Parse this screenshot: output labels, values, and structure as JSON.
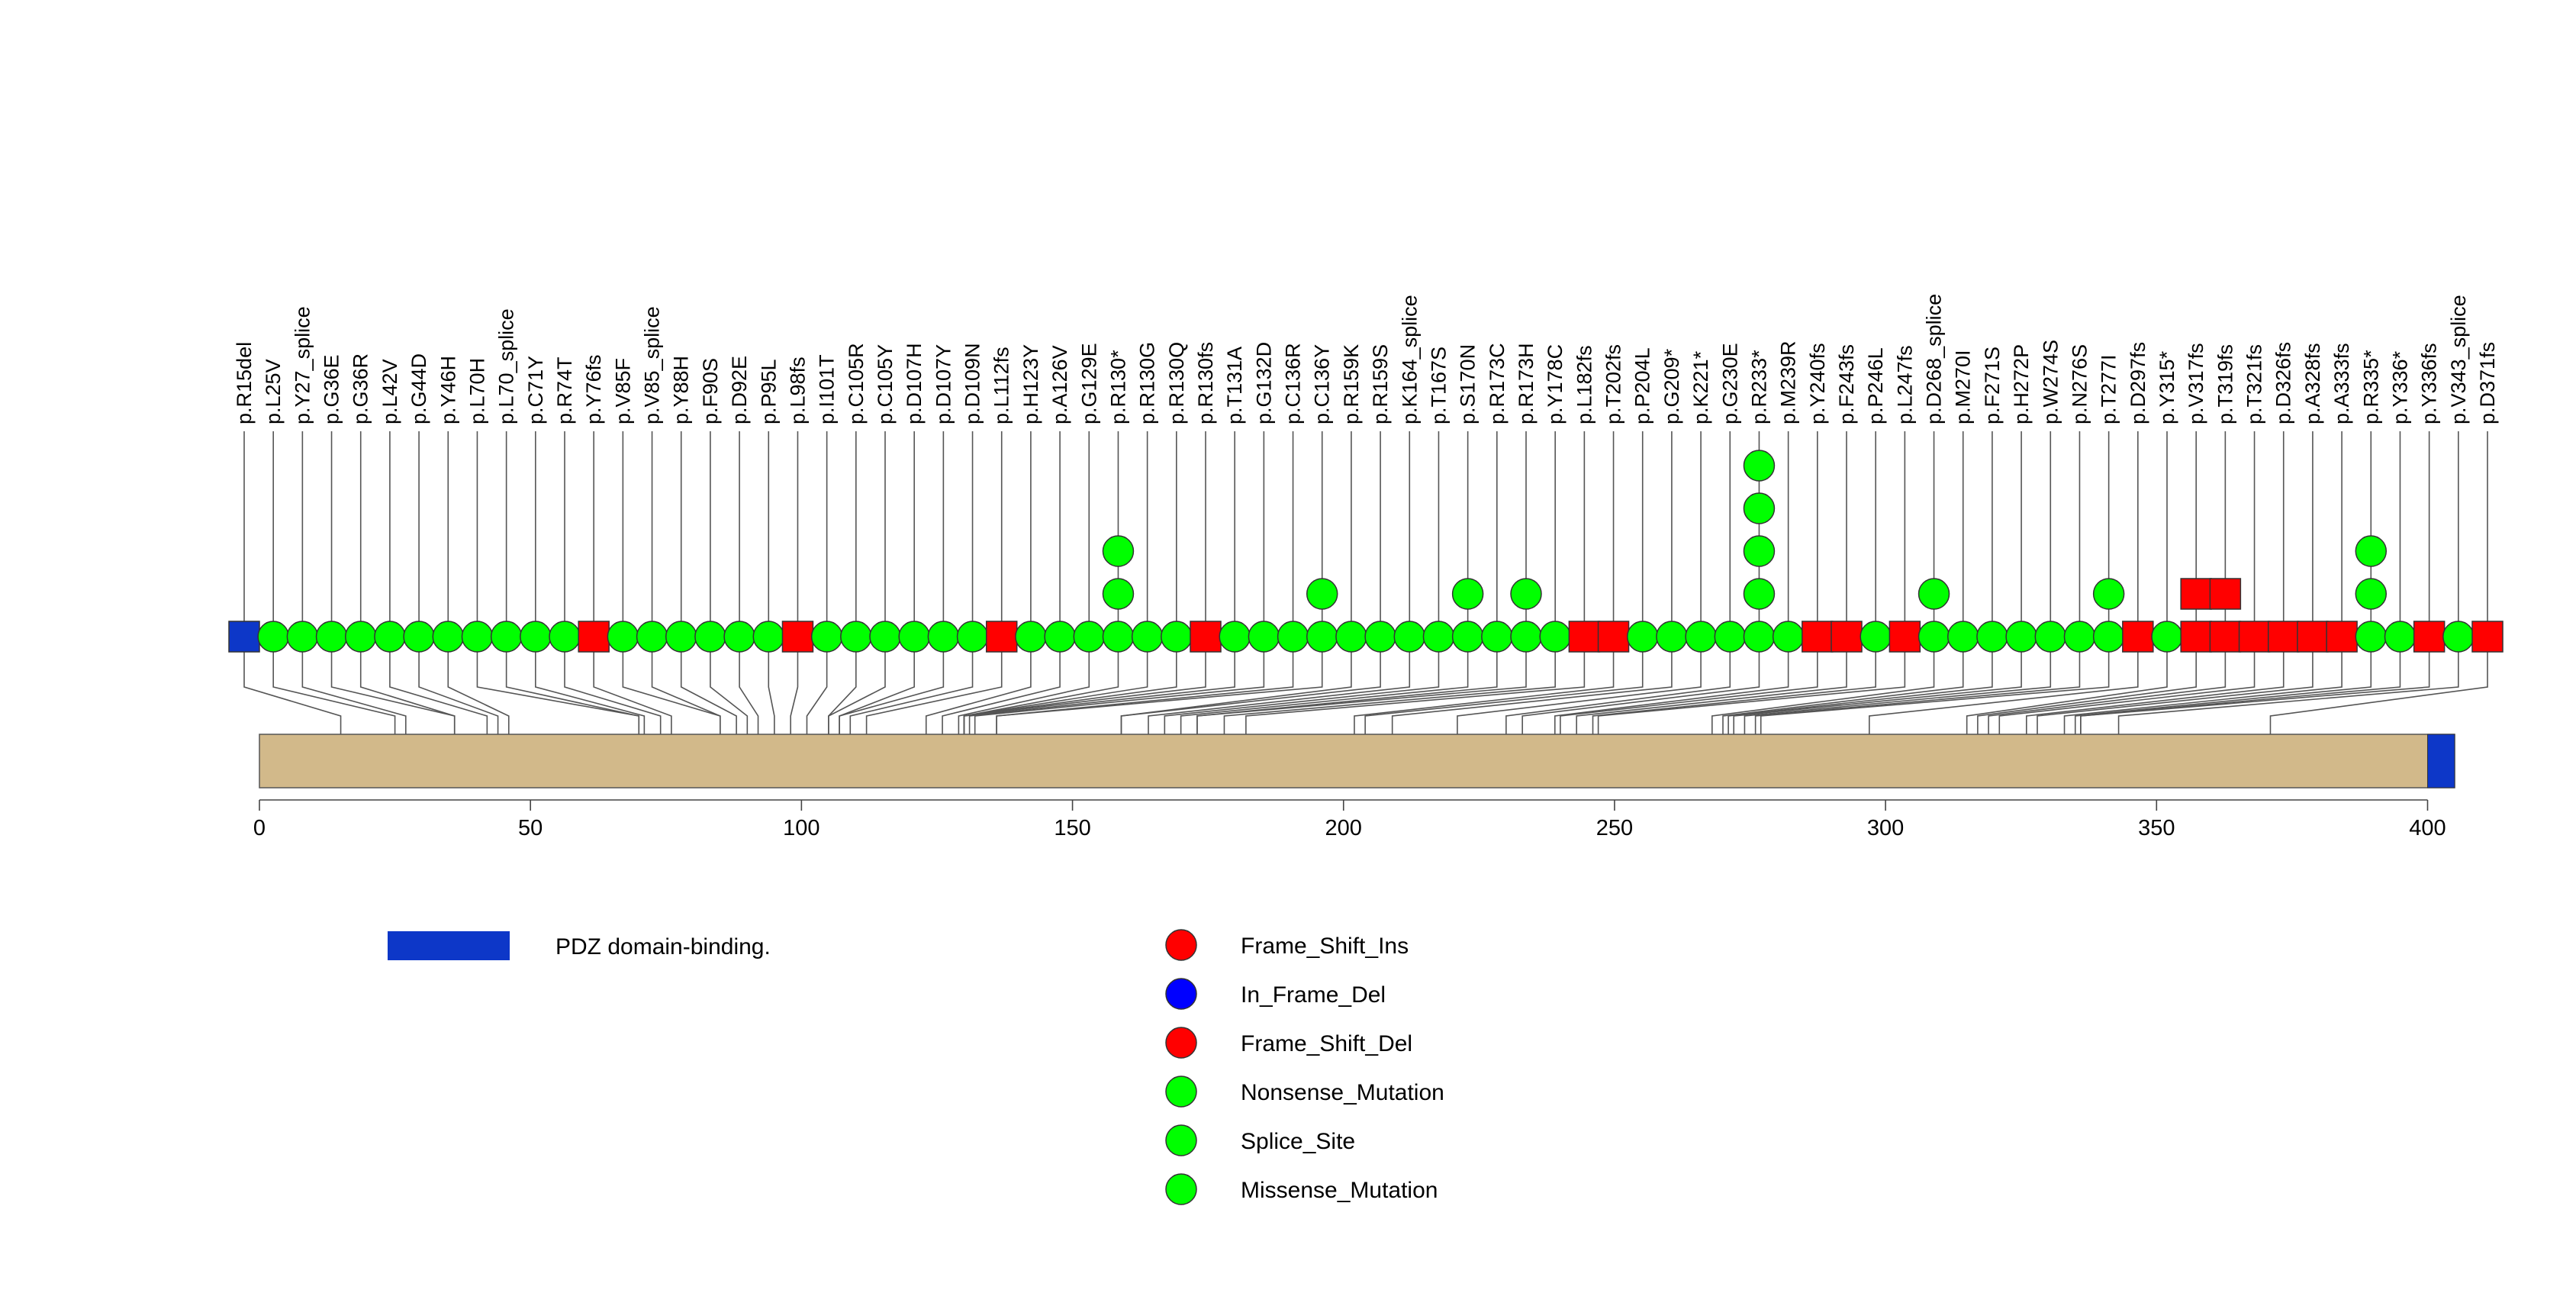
{
  "chart_data": {
    "type": "lollipop",
    "protein_length": 405,
    "axis": {
      "xlim": [
        0,
        405
      ],
      "ticks": [
        0,
        50,
        100,
        150,
        200,
        250,
        300,
        350,
        400
      ]
    },
    "domains": [
      {
        "name": "PDZ domain-binding.",
        "start": 400,
        "end": 405,
        "color": "#0d37c8"
      }
    ],
    "mutations": [
      {
        "label": "p.R15del",
        "pos": 15,
        "count": 1,
        "type": "In_Frame_Del"
      },
      {
        "label": "p.L25V",
        "pos": 25,
        "count": 1,
        "type": "Missense_Mutation"
      },
      {
        "label": "p.Y27_splice",
        "pos": 27,
        "count": 1,
        "type": "Splice_Site"
      },
      {
        "label": "p.G36E",
        "pos": 36,
        "count": 1,
        "type": "Missense_Mutation"
      },
      {
        "label": "p.G36R",
        "pos": 36,
        "count": 1,
        "type": "Missense_Mutation"
      },
      {
        "label": "p.L42V",
        "pos": 42,
        "count": 1,
        "type": "Missense_Mutation"
      },
      {
        "label": "p.G44D",
        "pos": 44,
        "count": 1,
        "type": "Missense_Mutation"
      },
      {
        "label": "p.Y46H",
        "pos": 46,
        "count": 1,
        "type": "Missense_Mutation"
      },
      {
        "label": "p.L70H",
        "pos": 70,
        "count": 1,
        "type": "Missense_Mutation"
      },
      {
        "label": "p.L70_splice",
        "pos": 70,
        "count": 1,
        "type": "Splice_Site"
      },
      {
        "label": "p.C71Y",
        "pos": 71,
        "count": 1,
        "type": "Missense_Mutation"
      },
      {
        "label": "p.R74T",
        "pos": 74,
        "count": 1,
        "type": "Missense_Mutation"
      },
      {
        "label": "p.Y76fs",
        "pos": 76,
        "count": 1,
        "type": "Frame_Shift_Del"
      },
      {
        "label": "p.V85F",
        "pos": 85,
        "count": 1,
        "type": "Missense_Mutation"
      },
      {
        "label": "p.V85_splice",
        "pos": 85,
        "count": 1,
        "type": "Splice_Site"
      },
      {
        "label": "p.Y88H",
        "pos": 88,
        "count": 1,
        "type": "Missense_Mutation"
      },
      {
        "label": "p.F90S",
        "pos": 90,
        "count": 1,
        "type": "Missense_Mutation"
      },
      {
        "label": "p.D92E",
        "pos": 92,
        "count": 1,
        "type": "Missense_Mutation"
      },
      {
        "label": "p.P95L",
        "pos": 95,
        "count": 1,
        "type": "Missense_Mutation"
      },
      {
        "label": "p.L98fs",
        "pos": 98,
        "count": 1,
        "type": "Frame_Shift_Del"
      },
      {
        "label": "p.I101T",
        "pos": 101,
        "count": 1,
        "type": "Missense_Mutation"
      },
      {
        "label": "p.C105R",
        "pos": 105,
        "count": 1,
        "type": "Missense_Mutation"
      },
      {
        "label": "p.C105Y",
        "pos": 105,
        "count": 1,
        "type": "Missense_Mutation"
      },
      {
        "label": "p.D107H",
        "pos": 107,
        "count": 1,
        "type": "Missense_Mutation"
      },
      {
        "label": "p.D107Y",
        "pos": 107,
        "count": 1,
        "type": "Missense_Mutation"
      },
      {
        "label": "p.D109N",
        "pos": 109,
        "count": 1,
        "type": "Missense_Mutation"
      },
      {
        "label": "p.L112fs",
        "pos": 112,
        "count": 1,
        "type": "Frame_Shift_Del"
      },
      {
        "label": "p.H123Y",
        "pos": 123,
        "count": 1,
        "type": "Missense_Mutation"
      },
      {
        "label": "p.A126V",
        "pos": 126,
        "count": 1,
        "type": "Missense_Mutation"
      },
      {
        "label": "p.G129E",
        "pos": 129,
        "count": 1,
        "type": "Missense_Mutation"
      },
      {
        "label": "p.R130*",
        "pos": 130,
        "count": 3,
        "type": "Nonsense_Mutation"
      },
      {
        "label": "p.R130G",
        "pos": 130,
        "count": 1,
        "type": "Missense_Mutation"
      },
      {
        "label": "p.R130Q",
        "pos": 130,
        "count": 1,
        "type": "Missense_Mutation"
      },
      {
        "label": "p.R130fs",
        "pos": 130,
        "count": 1,
        "type": "Frame_Shift_Del"
      },
      {
        "label": "p.T131A",
        "pos": 131,
        "count": 1,
        "type": "Missense_Mutation"
      },
      {
        "label": "p.G132D",
        "pos": 132,
        "count": 1,
        "type": "Missense_Mutation"
      },
      {
        "label": "p.C136R",
        "pos": 136,
        "count": 1,
        "type": "Missense_Mutation"
      },
      {
        "label": "p.C136Y",
        "pos": 136,
        "count": 2,
        "type": "Missense_Mutation"
      },
      {
        "label": "p.R159K",
        "pos": 159,
        "count": 1,
        "type": "Missense_Mutation"
      },
      {
        "label": "p.R159S",
        "pos": 159,
        "count": 1,
        "type": "Missense_Mutation"
      },
      {
        "label": "p.K164_splice",
        "pos": 164,
        "count": 1,
        "type": "Splice_Site"
      },
      {
        "label": "p.T167S",
        "pos": 167,
        "count": 1,
        "type": "Missense_Mutation"
      },
      {
        "label": "p.S170N",
        "pos": 170,
        "count": 2,
        "type": "Missense_Mutation"
      },
      {
        "label": "p.R173C",
        "pos": 173,
        "count": 1,
        "type": "Missense_Mutation"
      },
      {
        "label": "p.R173H",
        "pos": 173,
        "count": 2,
        "type": "Missense_Mutation"
      },
      {
        "label": "p.Y178C",
        "pos": 178,
        "count": 1,
        "type": "Missense_Mutation"
      },
      {
        "label": "p.L182fs",
        "pos": 182,
        "count": 1,
        "type": "Frame_Shift_Del"
      },
      {
        "label": "p.T202fs",
        "pos": 202,
        "count": 1,
        "type": "Frame_Shift_Del"
      },
      {
        "label": "p.P204L",
        "pos": 204,
        "count": 1,
        "type": "Missense_Mutation"
      },
      {
        "label": "p.G209*",
        "pos": 209,
        "count": 1,
        "type": "Nonsense_Mutation"
      },
      {
        "label": "p.K221*",
        "pos": 221,
        "count": 1,
        "type": "Nonsense_Mutation"
      },
      {
        "label": "p.G230E",
        "pos": 230,
        "count": 1,
        "type": "Missense_Mutation"
      },
      {
        "label": "p.R233*",
        "pos": 233,
        "count": 5,
        "type": "Nonsense_Mutation"
      },
      {
        "label": "p.M239R",
        "pos": 239,
        "count": 1,
        "type": "Missense_Mutation"
      },
      {
        "label": "p.Y240fs",
        "pos": 240,
        "count": 1,
        "type": "Frame_Shift_Del"
      },
      {
        "label": "p.F243fs",
        "pos": 243,
        "count": 1,
        "type": "Frame_Shift_Del"
      },
      {
        "label": "p.P246L",
        "pos": 246,
        "count": 1,
        "type": "Missense_Mutation"
      },
      {
        "label": "p.L247fs",
        "pos": 247,
        "count": 1,
        "type": "Frame_Shift_Del"
      },
      {
        "label": "p.D268_splice",
        "pos": 268,
        "count": 2,
        "type": "Splice_Site"
      },
      {
        "label": "p.M270I",
        "pos": 270,
        "count": 1,
        "type": "Missense_Mutation"
      },
      {
        "label": "p.F271S",
        "pos": 271,
        "count": 1,
        "type": "Missense_Mutation"
      },
      {
        "label": "p.H272P",
        "pos": 272,
        "count": 1,
        "type": "Missense_Mutation"
      },
      {
        "label": "p.W274S",
        "pos": 274,
        "count": 1,
        "type": "Missense_Mutation"
      },
      {
        "label": "p.N276S",
        "pos": 276,
        "count": 1,
        "type": "Missense_Mutation"
      },
      {
        "label": "p.T277I",
        "pos": 277,
        "count": 2,
        "type": "Missense_Mutation"
      },
      {
        "label": "p.D297fs",
        "pos": 297,
        "count": 1,
        "type": "Frame_Shift_Del"
      },
      {
        "label": "p.Y315*",
        "pos": 315,
        "count": 1,
        "type": "Nonsense_Mutation"
      },
      {
        "label": "p.V317fs",
        "pos": 317,
        "count": 2,
        "type": "Frame_Shift_Del"
      },
      {
        "label": "p.T319fs",
        "pos": 319,
        "count": 2,
        "type": "Frame_Shift_Del"
      },
      {
        "label": "p.T321fs",
        "pos": 321,
        "count": 1,
        "type": "Frame_Shift_Del"
      },
      {
        "label": "p.D326fs",
        "pos": 326,
        "count": 1,
        "type": "Frame_Shift_Del"
      },
      {
        "label": "p.A328fs",
        "pos": 328,
        "count": 1,
        "type": "Frame_Shift_Del"
      },
      {
        "label": "p.A333fs",
        "pos": 333,
        "count": 1,
        "type": "Frame_Shift_Del"
      },
      {
        "label": "p.R335*",
        "pos": 335,
        "count": 3,
        "type": "Nonsense_Mutation"
      },
      {
        "label": "p.Y336*",
        "pos": 336,
        "count": 1,
        "type": "Nonsense_Mutation"
      },
      {
        "label": "p.Y336fs",
        "pos": 336,
        "count": 1,
        "type": "Frame_Shift_Del"
      },
      {
        "label": "p.V343_splice",
        "pos": 343,
        "count": 1,
        "type": "Splice_Site"
      },
      {
        "label": "p.D371fs",
        "pos": 371,
        "count": 1,
        "type": "Frame_Shift_Del"
      }
    ],
    "legend": {
      "domains": [
        {
          "label": "PDZ domain-binding.",
          "color": "#0d37c8"
        }
      ],
      "types": [
        {
          "label": "Frame_Shift_Ins",
          "color": "#ff0000"
        },
        {
          "label": "In_Frame_Del",
          "color": "#0000ff"
        },
        {
          "label": "Frame_Shift_Del",
          "color": "#ff0000"
        },
        {
          "label": "Nonsense_Mutation",
          "color": "#00ff00"
        },
        {
          "label": "Splice_Site",
          "color": "#00ff00"
        },
        {
          "label": "Missense_Mutation",
          "color": "#00ff00"
        }
      ]
    },
    "colors": {
      "protein_bar": "#d2b98a",
      "frameshift": "#ff0000",
      "inframe": "#0d37c8",
      "point": "#00ff00",
      "stroke": "#555555"
    }
  }
}
